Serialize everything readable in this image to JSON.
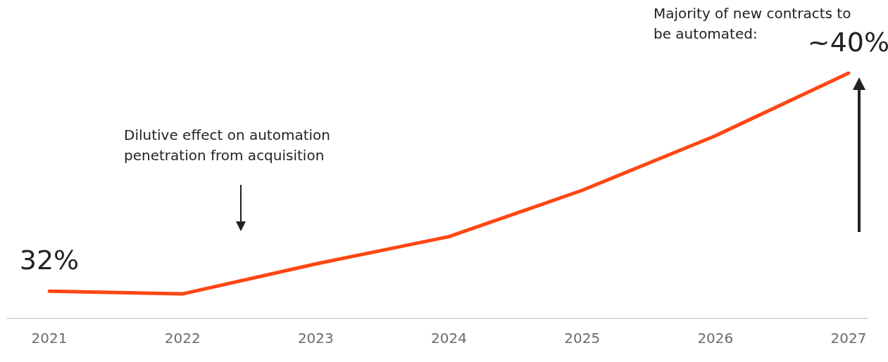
{
  "chart_data": {
    "type": "line",
    "categories": [
      "2021",
      "2022",
      "2023",
      "2024",
      "2025",
      "2026",
      "2027"
    ],
    "series": [
      {
        "color": "#ff4612",
        "values": [
          32,
          31.9,
          33,
          34,
          35.7,
          37.7,
          40
        ],
        "value_labels": [
          "32%",
          null,
          null,
          null,
          null,
          null,
          "~40%"
        ]
      }
    ],
    "tick_labels": "x",
    "grid": false,
    "legend": false,
    "marker": "none",
    "annotations": [
      "Dilutive effect on automation penetration from acquisition",
      "Majority of new contracts to be automated:"
    ]
  }
}
